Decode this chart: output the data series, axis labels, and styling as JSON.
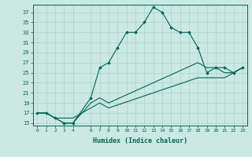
{
  "xlabel": "Humidex (Indice chaleur)",
  "bg_color": "#cbe8e2",
  "line_color": "#006655",
  "grid_color": "#a8d5cc",
  "ylim": [
    14.5,
    38.5
  ],
  "xlim": [
    -0.5,
    23.5
  ],
  "yticks": [
    15,
    17,
    19,
    21,
    23,
    25,
    27,
    29,
    31,
    33,
    35,
    37
  ],
  "xticks": [
    0,
    1,
    2,
    3,
    4,
    6,
    7,
    8,
    9,
    10,
    11,
    12,
    13,
    14,
    15,
    16,
    17,
    18,
    19,
    20,
    21,
    22,
    23
  ],
  "series": [
    {
      "x": [
        0,
        1,
        2,
        3,
        4,
        6,
        7,
        8,
        9,
        10,
        11,
        12,
        13,
        14,
        15,
        16,
        17,
        18,
        19,
        20,
        21,
        22,
        23
      ],
      "y": [
        17,
        17,
        16,
        15,
        15,
        20,
        26,
        27,
        30,
        33,
        33,
        35,
        38,
        37,
        34,
        33,
        33,
        30,
        25,
        26,
        26,
        25,
        26
      ],
      "has_markers": true
    },
    {
      "x": [
        0,
        1,
        2,
        3,
        4,
        6,
        7,
        8,
        18,
        19,
        20,
        21,
        22,
        23
      ],
      "y": [
        17,
        17,
        16,
        15,
        15,
        19,
        20,
        19,
        27,
        26,
        26,
        25,
        25,
        26
      ],
      "has_markers": false
    },
    {
      "x": [
        0,
        1,
        2,
        3,
        4,
        6,
        7,
        8,
        18,
        19,
        20,
        21,
        22,
        23
      ],
      "y": [
        17,
        17,
        16,
        16,
        16,
        18,
        19,
        18,
        24,
        24,
        24,
        24,
        25,
        26
      ],
      "has_markers": false
    }
  ]
}
